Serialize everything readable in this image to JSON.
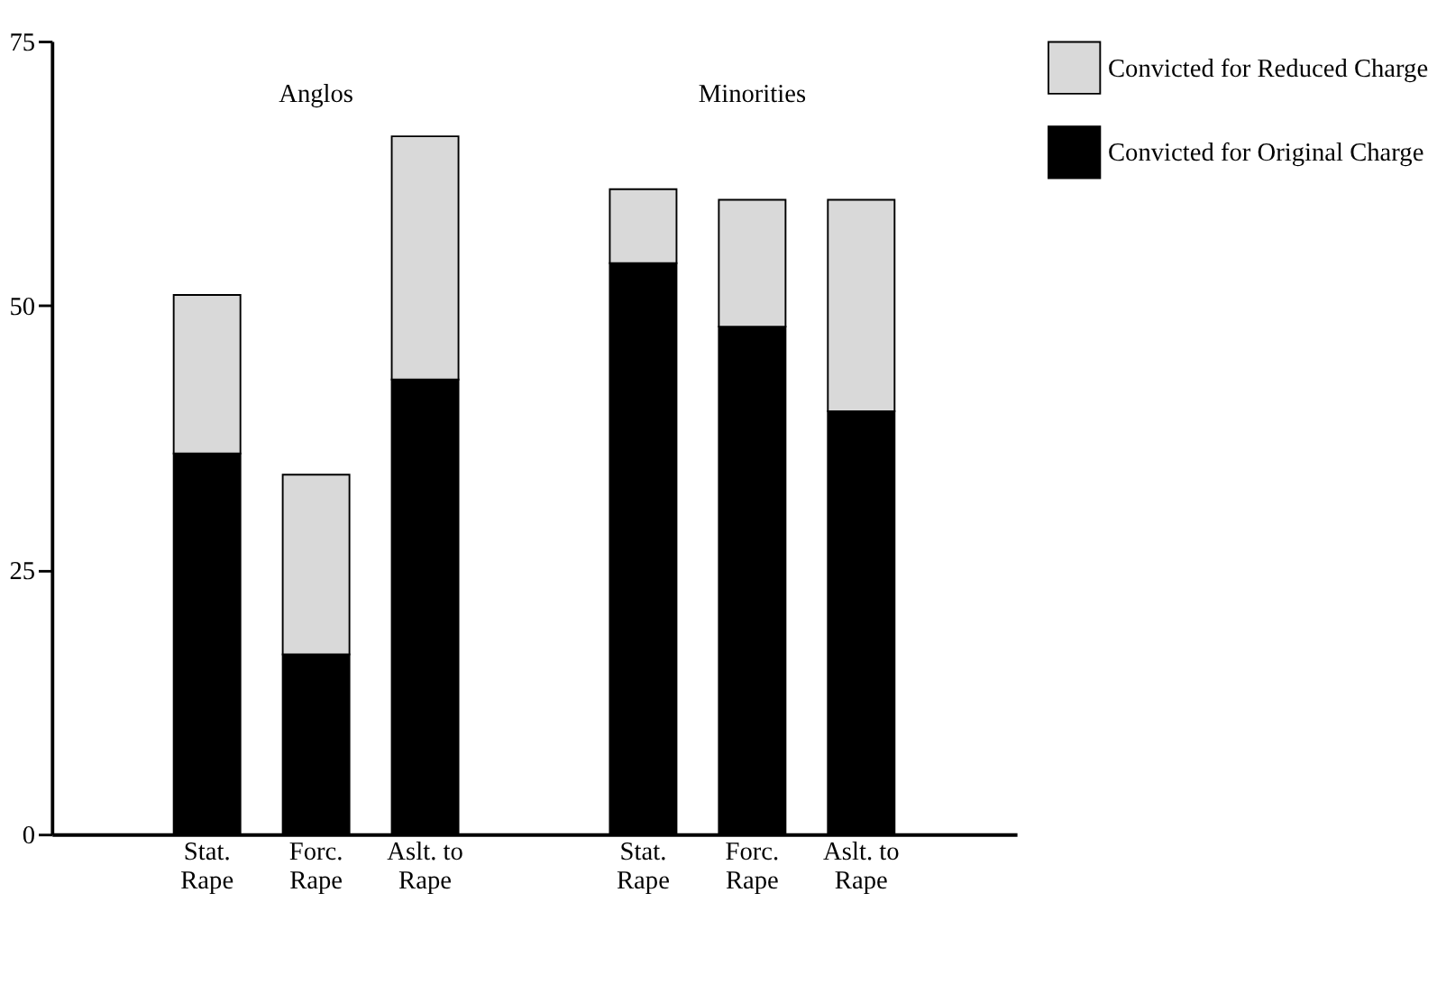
{
  "chart_data": {
    "type": "bar",
    "stacked": true,
    "categories": [
      "Stat.\nRape",
      "Forc.\nRape",
      "Aslt. to\nRape",
      null,
      "Stat.\nRape",
      "Forc.\nRape",
      "Aslt. to\nRape"
    ],
    "series": [
      {
        "name": "Convicted for Original Charge",
        "color": "#000000",
        "values": [
          36,
          17,
          43,
          null,
          54,
          48,
          40
        ]
      },
      {
        "name": "Convicted for Reduced Charge",
        "color": "#d9d9d9",
        "values": [
          15,
          17,
          23,
          null,
          7,
          12,
          20
        ]
      }
    ],
    "annotations": [
      "Anglos",
      "Minorities"
    ],
    "ylim": [
      0,
      75
    ],
    "yticks": [
      0,
      25,
      50,
      75
    ],
    "grid": false,
    "legend": "right"
  }
}
